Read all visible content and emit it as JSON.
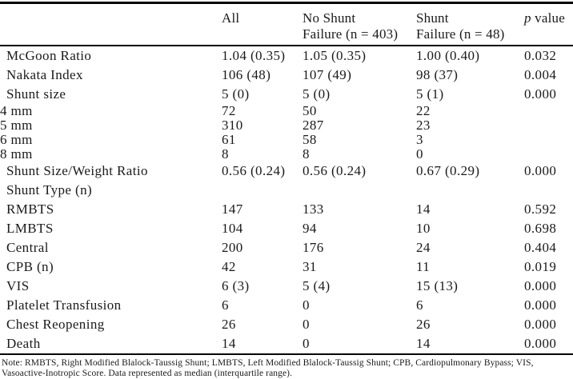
{
  "table": {
    "header": {
      "label": "",
      "all": "All",
      "no_shunt_line1": "No Shunt",
      "no_shunt_line2": "Failure (n = 403)",
      "shunt_line1": "Shunt",
      "shunt_line2": "Failure (n = 48)",
      "p_italic": "p",
      "p_rest": " value"
    },
    "rows": [
      {
        "label": "McGoon Ratio",
        "all": "1.04 (0.35)",
        "no_shunt": "1.05 (0.35)",
        "shunt": "1.00 (0.40)",
        "p": "0.032",
        "compact": false
      },
      {
        "label": "Nakata Index",
        "all": "106 (48)",
        "no_shunt": "107 (49)",
        "shunt": "98 (37)",
        "p": "0.004",
        "compact": false
      },
      {
        "label": "Shunt size",
        "all": "5 (0)",
        "no_shunt": "5 (0)",
        "shunt": "5 (1)",
        "p": "0.000",
        "compact": false
      },
      {
        "label": "4 mm",
        "all": "72",
        "no_shunt": "50",
        "shunt": "22",
        "p": "",
        "compact": true
      },
      {
        "label": "5 mm",
        "all": "310",
        "no_shunt": "287",
        "shunt": "23",
        "p": "",
        "compact": true
      },
      {
        "label": "6 mm",
        "all": "61",
        "no_shunt": "58",
        "shunt": "3",
        "p": "",
        "compact": true
      },
      {
        "label": "8 mm",
        "all": "8",
        "no_shunt": "8",
        "shunt": "0",
        "p": "",
        "compact": true
      },
      {
        "label": "Shunt Size/Weight Ratio",
        "all": "0.56 (0.24)",
        "no_shunt": "0.56 (0.24)",
        "shunt": "0.67 (0.29)",
        "p": "0.000",
        "compact": false
      },
      {
        "label": "Shunt Type (n)",
        "all": "",
        "no_shunt": "",
        "shunt": "",
        "p": "",
        "compact": false
      },
      {
        "label": "RMBTS",
        "all": "147",
        "no_shunt": "133",
        "shunt": "14",
        "p": "0.592",
        "compact": false
      },
      {
        "label": "LMBTS",
        "all": "104",
        "no_shunt": "94",
        "shunt": "10",
        "p": "0.698",
        "compact": false
      },
      {
        "label": "Central",
        "all": "200",
        "no_shunt": "176",
        "shunt": "24",
        "p": "0.404",
        "compact": false
      },
      {
        "label": "CPB (n)",
        "all": "42",
        "no_shunt": "31",
        "shunt": "11",
        "p": "0.019",
        "compact": false
      },
      {
        "label": "VIS",
        "all": "6 (3)",
        "no_shunt": "5 (4)",
        "shunt": "15 (13)",
        "p": "0.000",
        "compact": false
      },
      {
        "label": "Platelet Transfusion",
        "all": "6",
        "no_shunt": "0",
        "shunt": "6",
        "p": "0.000",
        "compact": false
      },
      {
        "label": "Chest Reopening",
        "all": "26",
        "no_shunt": "0",
        "shunt": "26",
        "p": "0.000",
        "compact": false
      },
      {
        "label": "Death",
        "all": "14",
        "no_shunt": "0",
        "shunt": "14",
        "p": "0.000",
        "compact": false
      }
    ]
  },
  "note": "Note: RMBTS, Right Modified Blalock-Taussig Shunt; LMBTS, Left Modified Blalock-Taussig Shunt; CPB, Cardiopulmonary Bypass; VIS, Vasoactive-Inotropic Score. Data represented as median (interquartile range).",
  "colors": {
    "text": "#1a1a1a",
    "rule": "#000000",
    "background": "#ffffff"
  }
}
